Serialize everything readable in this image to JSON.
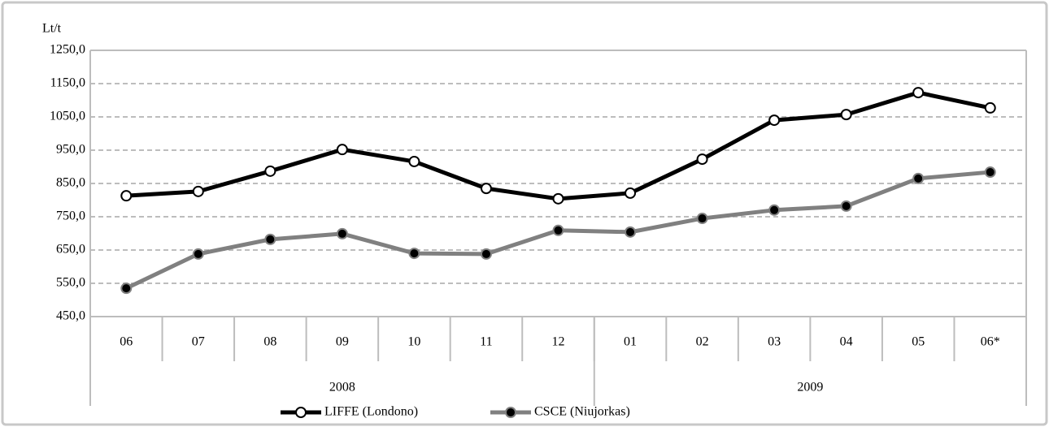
{
  "chart_data": {
    "type": "line",
    "y_axis_label": "Lt/t",
    "categories": [
      "06",
      "07",
      "08",
      "09",
      "10",
      "11",
      "12",
      "01",
      "02",
      "03",
      "04",
      "05",
      "06*"
    ],
    "x_groups": [
      {
        "label": "2008",
        "span": 7
      },
      {
        "label": "2009",
        "span": 6
      }
    ],
    "series": [
      {
        "name": "LIFFE (Londono)",
        "color": "#000000",
        "marker_fill": "#ffffff",
        "values": [
          813,
          826,
          887,
          952,
          916,
          835,
          804,
          821,
          923,
          1040,
          1057,
          1123,
          1077
        ]
      },
      {
        "name": "CSCE (Niujorkas)",
        "color": "#808080",
        "marker_fill": "#000000",
        "values": [
          535,
          638,
          682,
          699,
          640,
          638,
          709,
          704,
          745,
          770,
          782,
          865,
          884
        ]
      }
    ],
    "ylim": [
      450,
      1250
    ],
    "yticks": [
      {
        "value": 450,
        "label": "450,0"
      },
      {
        "value": 550,
        "label": "550,0"
      },
      {
        "value": 650,
        "label": "650,0"
      },
      {
        "value": 750,
        "label": "750,0"
      },
      {
        "value": 850,
        "label": "850,0"
      },
      {
        "value": 950,
        "label": "950,0"
      },
      {
        "value": 1050,
        "label": "1050,0"
      },
      {
        "value": 1150,
        "label": "1150,0"
      },
      {
        "value": 1250,
        "label": "1250,0"
      }
    ],
    "grid": true,
    "legend": "bottom"
  }
}
